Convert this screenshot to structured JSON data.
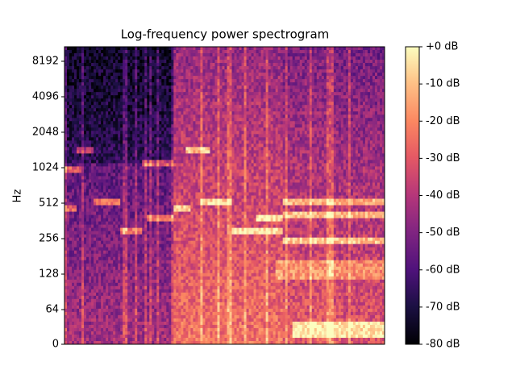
{
  "chart_data": {
    "type": "spectrogram",
    "title": "Log-frequency power spectrogram",
    "ylabel": "Hz",
    "yscale": "log",
    "ylim": [
      0,
      11025
    ],
    "yticks": [
      0,
      64,
      128,
      256,
      512,
      1024,
      2048,
      4096,
      8192
    ],
    "colormap": "magma",
    "clim": [
      -80,
      0
    ],
    "cticks": [
      {
        "value": 0,
        "label": "+0 dB"
      },
      {
        "value": -10,
        "label": "-10 dB"
      },
      {
        "value": -20,
        "label": "-20 dB"
      },
      {
        "value": -30,
        "label": "-30 dB"
      },
      {
        "value": -40,
        "label": "-40 dB"
      },
      {
        "value": -50,
        "label": "-50 dB"
      },
      {
        "value": -60,
        "label": "-60 dB"
      },
      {
        "value": -70,
        "label": "-70 dB"
      },
      {
        "value": -80,
        "label": "-80 dB"
      }
    ]
  }
}
